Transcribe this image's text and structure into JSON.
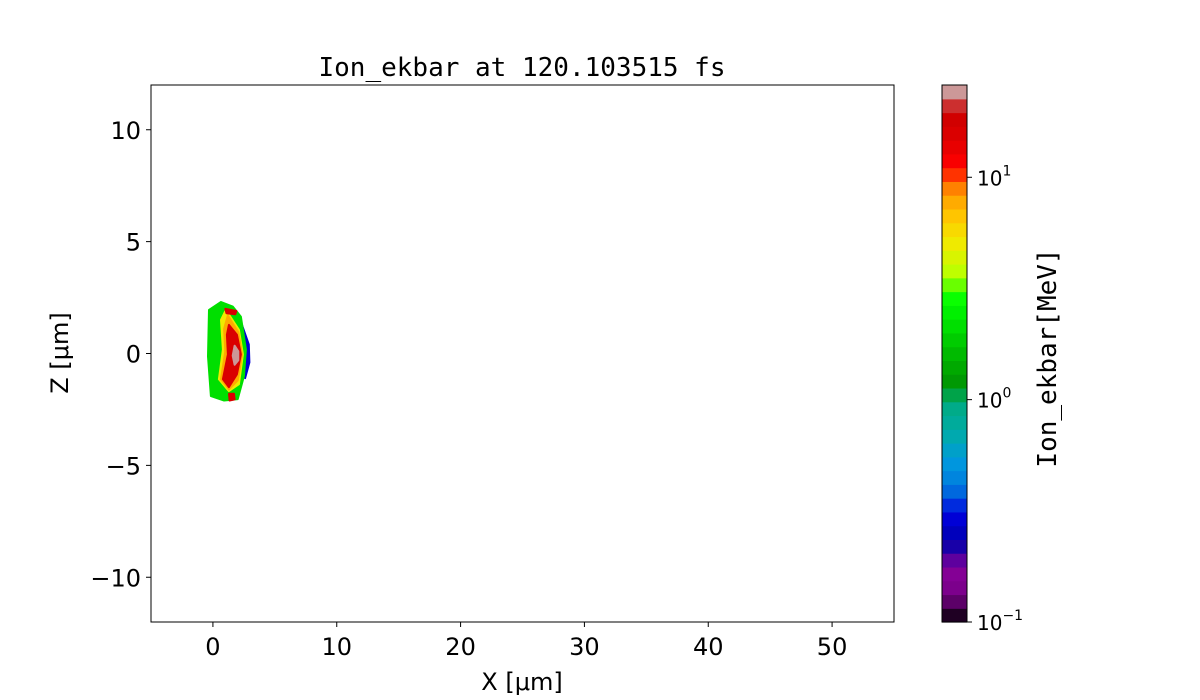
{
  "chart_data": {
    "type": "heatmap",
    "title": "Ion_ekbar at 120.103515 fs",
    "xlabel": "X [μm]",
    "ylabel": "Z [μm]",
    "xlim": [
      -5,
      55
    ],
    "ylim": [
      -12,
      12
    ],
    "xticks": [
      0,
      10,
      20,
      30,
      40,
      50
    ],
    "xtick_labels": [
      "0",
      "10",
      "20",
      "30",
      "40",
      "50"
    ],
    "yticks": [
      10,
      5,
      0,
      -5,
      -10
    ],
    "ytick_labels": [
      "10",
      "5",
      "0",
      "−5",
      "−10"
    ],
    "grid": false,
    "colorbar": {
      "label": "Ion_ekbar[MeV]",
      "scale": "log",
      "range": [
        0.1,
        26
      ],
      "levels": 39,
      "colormap": "nipy_spectral",
      "ticks": [
        0.1,
        1,
        10
      ],
      "tick_labels": [
        {
          "base": "10",
          "exp": "−1"
        },
        {
          "base": "10",
          "exp": "0"
        },
        {
          "base": "10",
          "exp": "1"
        }
      ]
    },
    "regions": [
      {
        "level": 0.3,
        "points": [
          [
            2.2,
            1.5
          ],
          [
            2.9,
            0.4
          ],
          [
            2.95,
            -0.4
          ],
          [
            2.6,
            -1.1
          ],
          [
            2.3,
            -0.2
          ]
        ]
      },
      {
        "level": 2.0,
        "points": [
          [
            0.65,
            2.3
          ],
          [
            1.6,
            2.1
          ],
          [
            2.26,
            1.64
          ],
          [
            2.66,
            0.18
          ],
          [
            2.5,
            -1.02
          ],
          [
            2.0,
            -2.04
          ],
          [
            0.9,
            -2.1
          ],
          [
            -0.16,
            -1.9
          ],
          [
            -0.4,
            -0.13
          ],
          [
            -0.32,
            1.95
          ]
        ]
      },
      {
        "level": 5.0,
        "points": [
          [
            1.05,
            1.95
          ],
          [
            2.1,
            1.06
          ],
          [
            2.42,
            -0.04
          ],
          [
            2.1,
            -1.37
          ],
          [
            1.29,
            -1.68
          ],
          [
            0.48,
            -1.15
          ],
          [
            0.81,
            0.18
          ],
          [
            0.65,
            1.5
          ]
        ]
      },
      {
        "level": 8.0,
        "points": [
          [
            1.2,
            1.7
          ],
          [
            2.05,
            0.95
          ],
          [
            2.35,
            -0.04
          ],
          [
            2.0,
            -1.2
          ],
          [
            1.29,
            -1.6
          ],
          [
            0.65,
            -1.15
          ],
          [
            1.0,
            0.1
          ],
          [
            0.9,
            1.1
          ]
        ]
      },
      {
        "level": 15.0,
        "points": [
          [
            1.29,
            1.28
          ],
          [
            1.94,
            0.84
          ],
          [
            2.26,
            -0.04
          ],
          [
            1.94,
            -0.93
          ],
          [
            1.29,
            -1.5
          ],
          [
            0.81,
            -1.15
          ],
          [
            1.21,
            -0.04
          ],
          [
            1.13,
            0.84
          ]
        ]
      },
      {
        "level": 25.0,
        "points": [
          [
            1.75,
            0.35
          ],
          [
            2.05,
            0.1
          ],
          [
            2.05,
            -0.3
          ],
          [
            1.75,
            -0.5
          ],
          [
            1.6,
            -0.1
          ]
        ]
      },
      {
        "level": 15.0,
        "points": [
          [
            1.3,
            -1.8
          ],
          [
            1.7,
            -1.8
          ],
          [
            1.75,
            -2.05
          ],
          [
            1.35,
            -2.1
          ]
        ]
      },
      {
        "level": 15.0,
        "points": [
          [
            1.0,
            2.0
          ],
          [
            1.9,
            1.9
          ],
          [
            1.8,
            1.75
          ],
          [
            1.1,
            1.8
          ]
        ]
      }
    ]
  }
}
